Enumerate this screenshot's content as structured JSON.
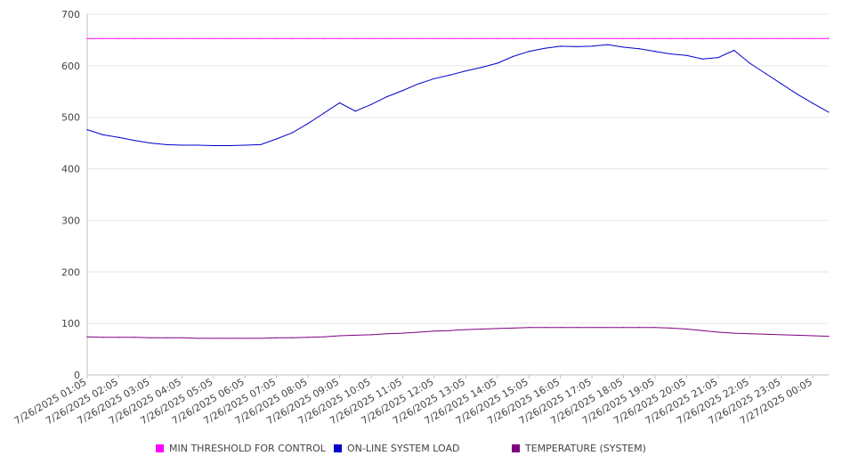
{
  "chart_data": {
    "type": "line",
    "title": "",
    "xlabel": "",
    "ylabel": "",
    "ylim": [
      0,
      700
    ],
    "yticks": [
      0,
      100,
      200,
      300,
      400,
      500,
      600,
      700
    ],
    "grid": true,
    "legend_position": "bottom",
    "x_tick_labels": [
      "7/26/2025 01:05",
      "7/26/2025 02:05",
      "7/26/2025 03:05",
      "7/26/2025 04:05",
      "7/26/2025 05:05",
      "7/26/2025 06:05",
      "7/26/2025 07:05",
      "7/26/2025 08:05",
      "7/26/2025 09:05",
      "7/26/2025 10:05",
      "7/26/2025 11:05",
      "7/26/2025 12:05",
      "7/26/2025 13:05",
      "7/26/2025 14:05",
      "7/26/2025 15:05",
      "7/26/2025 16:05",
      "7/26/2025 17:05",
      "7/26/2025 18:05",
      "7/26/2025 19:05",
      "7/26/2025 20:05",
      "7/26/2025 21:05",
      "7/26/2025 22:05",
      "7/26/2025 23:05",
      "7/27/2025 00:05"
    ],
    "x": [
      "7/26/2025 01:05",
      "7/26/2025 01:35",
      "7/26/2025 02:05",
      "7/26/2025 02:35",
      "7/26/2025 03:05",
      "7/26/2025 03:35",
      "7/26/2025 04:05",
      "7/26/2025 04:35",
      "7/26/2025 05:05",
      "7/26/2025 05:35",
      "7/26/2025 06:05",
      "7/26/2025 06:35",
      "7/26/2025 07:05",
      "7/26/2025 07:35",
      "7/26/2025 08:05",
      "7/26/2025 08:35",
      "7/26/2025 09:05",
      "7/26/2025 09:35",
      "7/26/2025 10:05",
      "7/26/2025 10:35",
      "7/26/2025 11:05",
      "7/26/2025 11:35",
      "7/26/2025 12:05",
      "7/26/2025 12:35",
      "7/26/2025 13:05",
      "7/26/2025 13:35",
      "7/26/2025 14:05",
      "7/26/2025 14:35",
      "7/26/2025 15:05",
      "7/26/2025 15:35",
      "7/26/2025 16:05",
      "7/26/2025 16:35",
      "7/26/2025 17:05",
      "7/26/2025 17:35",
      "7/26/2025 18:05",
      "7/26/2025 18:35",
      "7/26/2025 19:05",
      "7/26/2025 19:35",
      "7/26/2025 20:05",
      "7/26/2025 20:35",
      "7/26/2025 21:05",
      "7/26/2025 21:35",
      "7/26/2025 22:05",
      "7/26/2025 22:35",
      "7/26/2025 23:05",
      "7/26/2025 23:35",
      "7/27/2025 00:05",
      "7/27/2025 00:35"
    ],
    "series": [
      {
        "name": "MIN THRESHOLD FOR CONTROL",
        "color": "#ff00ff",
        "values": [
          653,
          653,
          653,
          653,
          653,
          653,
          653,
          653,
          653,
          653,
          653,
          653,
          653,
          653,
          653,
          653,
          653,
          653,
          653,
          653,
          653,
          653,
          653,
          653,
          653,
          653,
          653,
          653,
          653,
          653,
          653,
          653,
          653,
          653,
          653,
          653,
          653,
          653,
          653,
          653,
          653,
          653,
          653,
          653,
          653,
          653,
          653,
          653
        ]
      },
      {
        "name": "ON-LINE SYSTEM LOAD",
        "color": "#0000cc",
        "values": [
          476,
          466,
          461,
          455,
          450,
          447,
          446,
          446,
          445,
          445,
          446,
          447,
          458,
          470,
          488,
          508,
          528,
          512,
          525,
          540,
          552,
          565,
          575,
          582,
          590,
          597,
          605,
          618,
          628,
          634,
          638,
          637,
          638,
          641,
          636,
          633,
          628,
          623,
          620,
          613,
          616,
          630,
          605,
          585,
          565,
          545,
          527,
          510
        ]
      },
      {
        "name": "TEMPERATURE (SYSTEM)",
        "color": "#800080",
        "values": [
          74,
          73,
          73,
          73,
          72,
          72,
          72,
          71,
          71,
          71,
          71,
          71,
          72,
          72,
          73,
          74,
          76,
          77,
          78,
          80,
          81,
          83,
          85,
          86,
          88,
          89,
          90,
          91,
          92,
          92,
          92,
          92,
          92,
          92,
          92,
          92,
          92,
          91,
          89,
          86,
          83,
          81,
          80,
          79,
          78,
          77,
          76,
          75
        ]
      }
    ]
  }
}
